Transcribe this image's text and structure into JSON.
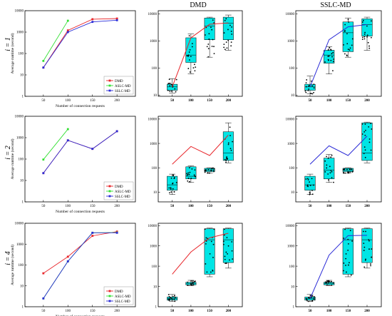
{
  "columns": [
    "",
    "DMD",
    "SSLC-MD"
  ],
  "rows": [
    "i = 1",
    "i = 2",
    "i = 4"
  ],
  "colors": {
    "DMD": "#e8262b",
    "ASLC-MD": "#33e033",
    "SSLC-MD": "#2b2bd6",
    "box_fill": "#00e5e5",
    "dmd_line": "#e8262b",
    "sslc_line": "#2b2bd6"
  },
  "chart_data": [
    {
      "type": "line",
      "row": 0,
      "col": 0,
      "xlabel": "Number of connection requests",
      "ylabel": "Average runtime (second)",
      "x": [
        50,
        100,
        150,
        200
      ],
      "xticks": [
        "50",
        "100",
        "150",
        "200"
      ],
      "yscale": "log",
      "ylim": [
        1,
        10000
      ],
      "yticks": [
        "1",
        "10",
        "100",
        "1000",
        "10000"
      ],
      "legend": "bottom-right",
      "series": [
        {
          "name": "DMD",
          "color": "#e8262b",
          "values": [
            22,
            1200,
            4000,
            4300
          ]
        },
        {
          "name": "ASLC-MD",
          "color": "#33e033",
          "values": [
            45,
            3400,
            null,
            null
          ]
        },
        {
          "name": "SSLC-MD",
          "color": "#2b2bd6",
          "values": [
            22,
            1000,
            3000,
            3600
          ]
        }
      ]
    },
    {
      "type": "box",
      "row": 0,
      "col": 1,
      "categories": [
        "50",
        "100",
        "150",
        "200"
      ],
      "yscale": "log",
      "ylim": [
        9,
        13000
      ],
      "yticks": [
        "10",
        "100",
        "1000",
        "10000"
      ],
      "boxes": [
        {
          "min": 12,
          "q1": 15,
          "median": 20,
          "q3": 25,
          "max": 40
        },
        {
          "min": 60,
          "q1": 160,
          "median": 300,
          "q3": 1300,
          "max": 1800
        },
        {
          "min": 250,
          "q1": 1100,
          "median": 3500,
          "q3": 7000,
          "max": 7500
        },
        {
          "min": 450,
          "q1": 1100,
          "median": 4500,
          "q3": 7500,
          "max": 9000
        }
      ],
      "mean_line": [
        20,
        1300,
        4100,
        4600
      ]
    },
    {
      "type": "box",
      "row": 0,
      "col": 2,
      "categories": [
        "50",
        "100",
        "150",
        "200"
      ],
      "yscale": "log",
      "ylim": [
        9,
        13000
      ],
      "yticks": [
        "10",
        "100",
        "1000",
        "10000"
      ],
      "boxes": [
        {
          "min": 11,
          "q1": 15,
          "median": 20,
          "q3": 25,
          "max": 50
        },
        {
          "min": 60,
          "q1": 150,
          "median": 300,
          "q3": 450,
          "max": 600
        },
        {
          "min": 250,
          "q1": 400,
          "median": 2000,
          "q3": 5000,
          "max": 7000
        },
        {
          "min": 450,
          "q1": 1500,
          "median": 4000,
          "q3": 6500,
          "max": 7500
        }
      ],
      "mean_line": [
        20,
        1100,
        3300,
        4000
      ]
    },
    {
      "type": "line",
      "row": 1,
      "col": 0,
      "xlabel": "Number of connection requests",
      "ylabel": "Average runtime (second)",
      "x": [
        50,
        100,
        150,
        200
      ],
      "xticks": [
        "50",
        "100",
        "150",
        "200"
      ],
      "yscale": "log",
      "ylim": [
        1,
        10000
      ],
      "yticks": [
        "1",
        "10",
        "100",
        "1000",
        "10000"
      ],
      "legend": "bottom-right",
      "series": [
        {
          "name": "DMD",
          "color": "#e8262b",
          "values": [
            22,
            750,
            300,
            2000
          ]
        },
        {
          "name": "ASLC-MD",
          "color": "#33e033",
          "values": [
            95,
            2500,
            null,
            null
          ]
        },
        {
          "name": "SSLC-MD",
          "color": "#2b2bd6",
          "values": [
            22,
            750,
            300,
            2000
          ]
        }
      ]
    },
    {
      "type": "box",
      "row": 1,
      "col": 1,
      "categories": [
        "50",
        "100",
        "150",
        "200"
      ],
      "yscale": "log",
      "ylim": [
        4,
        13000
      ],
      "yticks": [
        "10",
        "100",
        "1000",
        "10000"
      ],
      "boxes": [
        {
          "min": 8,
          "q1": 12,
          "median": 20,
          "q3": 45,
          "max": 55
        },
        {
          "min": 25,
          "q1": 35,
          "median": 45,
          "q3": 110,
          "max": 120
        },
        {
          "min": 60,
          "q1": 70,
          "median": 80,
          "q3": 95,
          "max": 100
        },
        {
          "min": 160,
          "q1": 200,
          "median": 400,
          "q3": 3000,
          "max": 7000
        }
      ],
      "mean_line": [
        140,
        750,
        320,
        2200
      ]
    },
    {
      "type": "box",
      "row": 1,
      "col": 2,
      "categories": [
        "50",
        "100",
        "150",
        "200"
      ],
      "yscale": "log",
      "ylim": [
        4,
        13000
      ],
      "yticks": [
        "10",
        "100",
        "1000",
        "10000"
      ],
      "boxes": [
        {
          "min": 8,
          "q1": 12,
          "median": 20,
          "q3": 45,
          "max": 55
        },
        {
          "min": 25,
          "q1": 35,
          "median": 80,
          "q3": 250,
          "max": 350
        },
        {
          "min": 60,
          "q1": 70,
          "median": 80,
          "q3": 95,
          "max": 100
        },
        {
          "min": 160,
          "q1": 200,
          "median": 400,
          "q3": 7000,
          "max": 7500
        }
      ],
      "mean_line": [
        140,
        800,
        320,
        2000
      ]
    },
    {
      "type": "line",
      "row": 2,
      "col": 0,
      "xlabel": "Number of connection requests",
      "ylabel": "Average runtime (second)",
      "x": [
        50,
        100,
        150,
        200
      ],
      "xticks": [
        "50",
        "100",
        "150",
        "200"
      ],
      "yscale": "log",
      "ylim": [
        1,
        10000
      ],
      "yticks": [
        "1",
        "10",
        "100",
        "1000",
        "10000"
      ],
      "legend": "bottom-right",
      "series": [
        {
          "name": "DMD",
          "color": "#e8262b",
          "values": [
            40,
            250,
            2500,
            4000
          ]
        },
        {
          "name": "ASLC-MD",
          "color": "#33e033",
          "values": [
            2.5,
            150,
            3500,
            3600
          ]
        },
        {
          "name": "SSLC-MD",
          "color": "#2b2bd6",
          "values": [
            2.5,
            150,
            3500,
            3500
          ]
        }
      ]
    },
    {
      "type": "box",
      "row": 2,
      "col": 1,
      "categories": [
        "50",
        "100",
        "150",
        "200"
      ],
      "yscale": "log",
      "ylim": [
        1,
        13000
      ],
      "yticks": [
        "1",
        "10",
        "100",
        "1000",
        "10000"
      ],
      "boxes": [
        {
          "min": 1.8,
          "q1": 2.1,
          "median": 2.5,
          "q3": 3,
          "max": 4
        },
        {
          "min": 11,
          "q1": 12,
          "median": 14,
          "q3": 16,
          "max": 20
        },
        {
          "min": 30,
          "q1": 40,
          "median": 2000,
          "q3": 7000,
          "max": 7500
        },
        {
          "min": 80,
          "q1": 150,
          "median": 2000,
          "q3": 7000,
          "max": 7500
        }
      ],
      "mean_line": [
        40,
        500,
        2500,
        4200
      ]
    },
    {
      "type": "box",
      "row": 2,
      "col": 2,
      "categories": [
        "50",
        "100",
        "150",
        "200"
      ],
      "yscale": "log",
      "ylim": [
        1,
        13000
      ],
      "yticks": [
        "1",
        "10",
        "100",
        "1000",
        "10000"
      ],
      "boxes": [
        {
          "min": 1.8,
          "q1": 2.1,
          "median": 2.5,
          "q3": 3,
          "max": 4
        },
        {
          "min": 11,
          "q1": 12,
          "median": 14,
          "q3": 16,
          "max": 20
        },
        {
          "min": 30,
          "q1": 40,
          "median": 2000,
          "q3": 7000,
          "max": 7500
        },
        {
          "min": 80,
          "q1": 150,
          "median": 2000,
          "q3": 7000,
          "max": 7500
        }
      ],
      "mean_line": [
        2.5,
        350,
        3200,
        3300
      ]
    }
  ]
}
